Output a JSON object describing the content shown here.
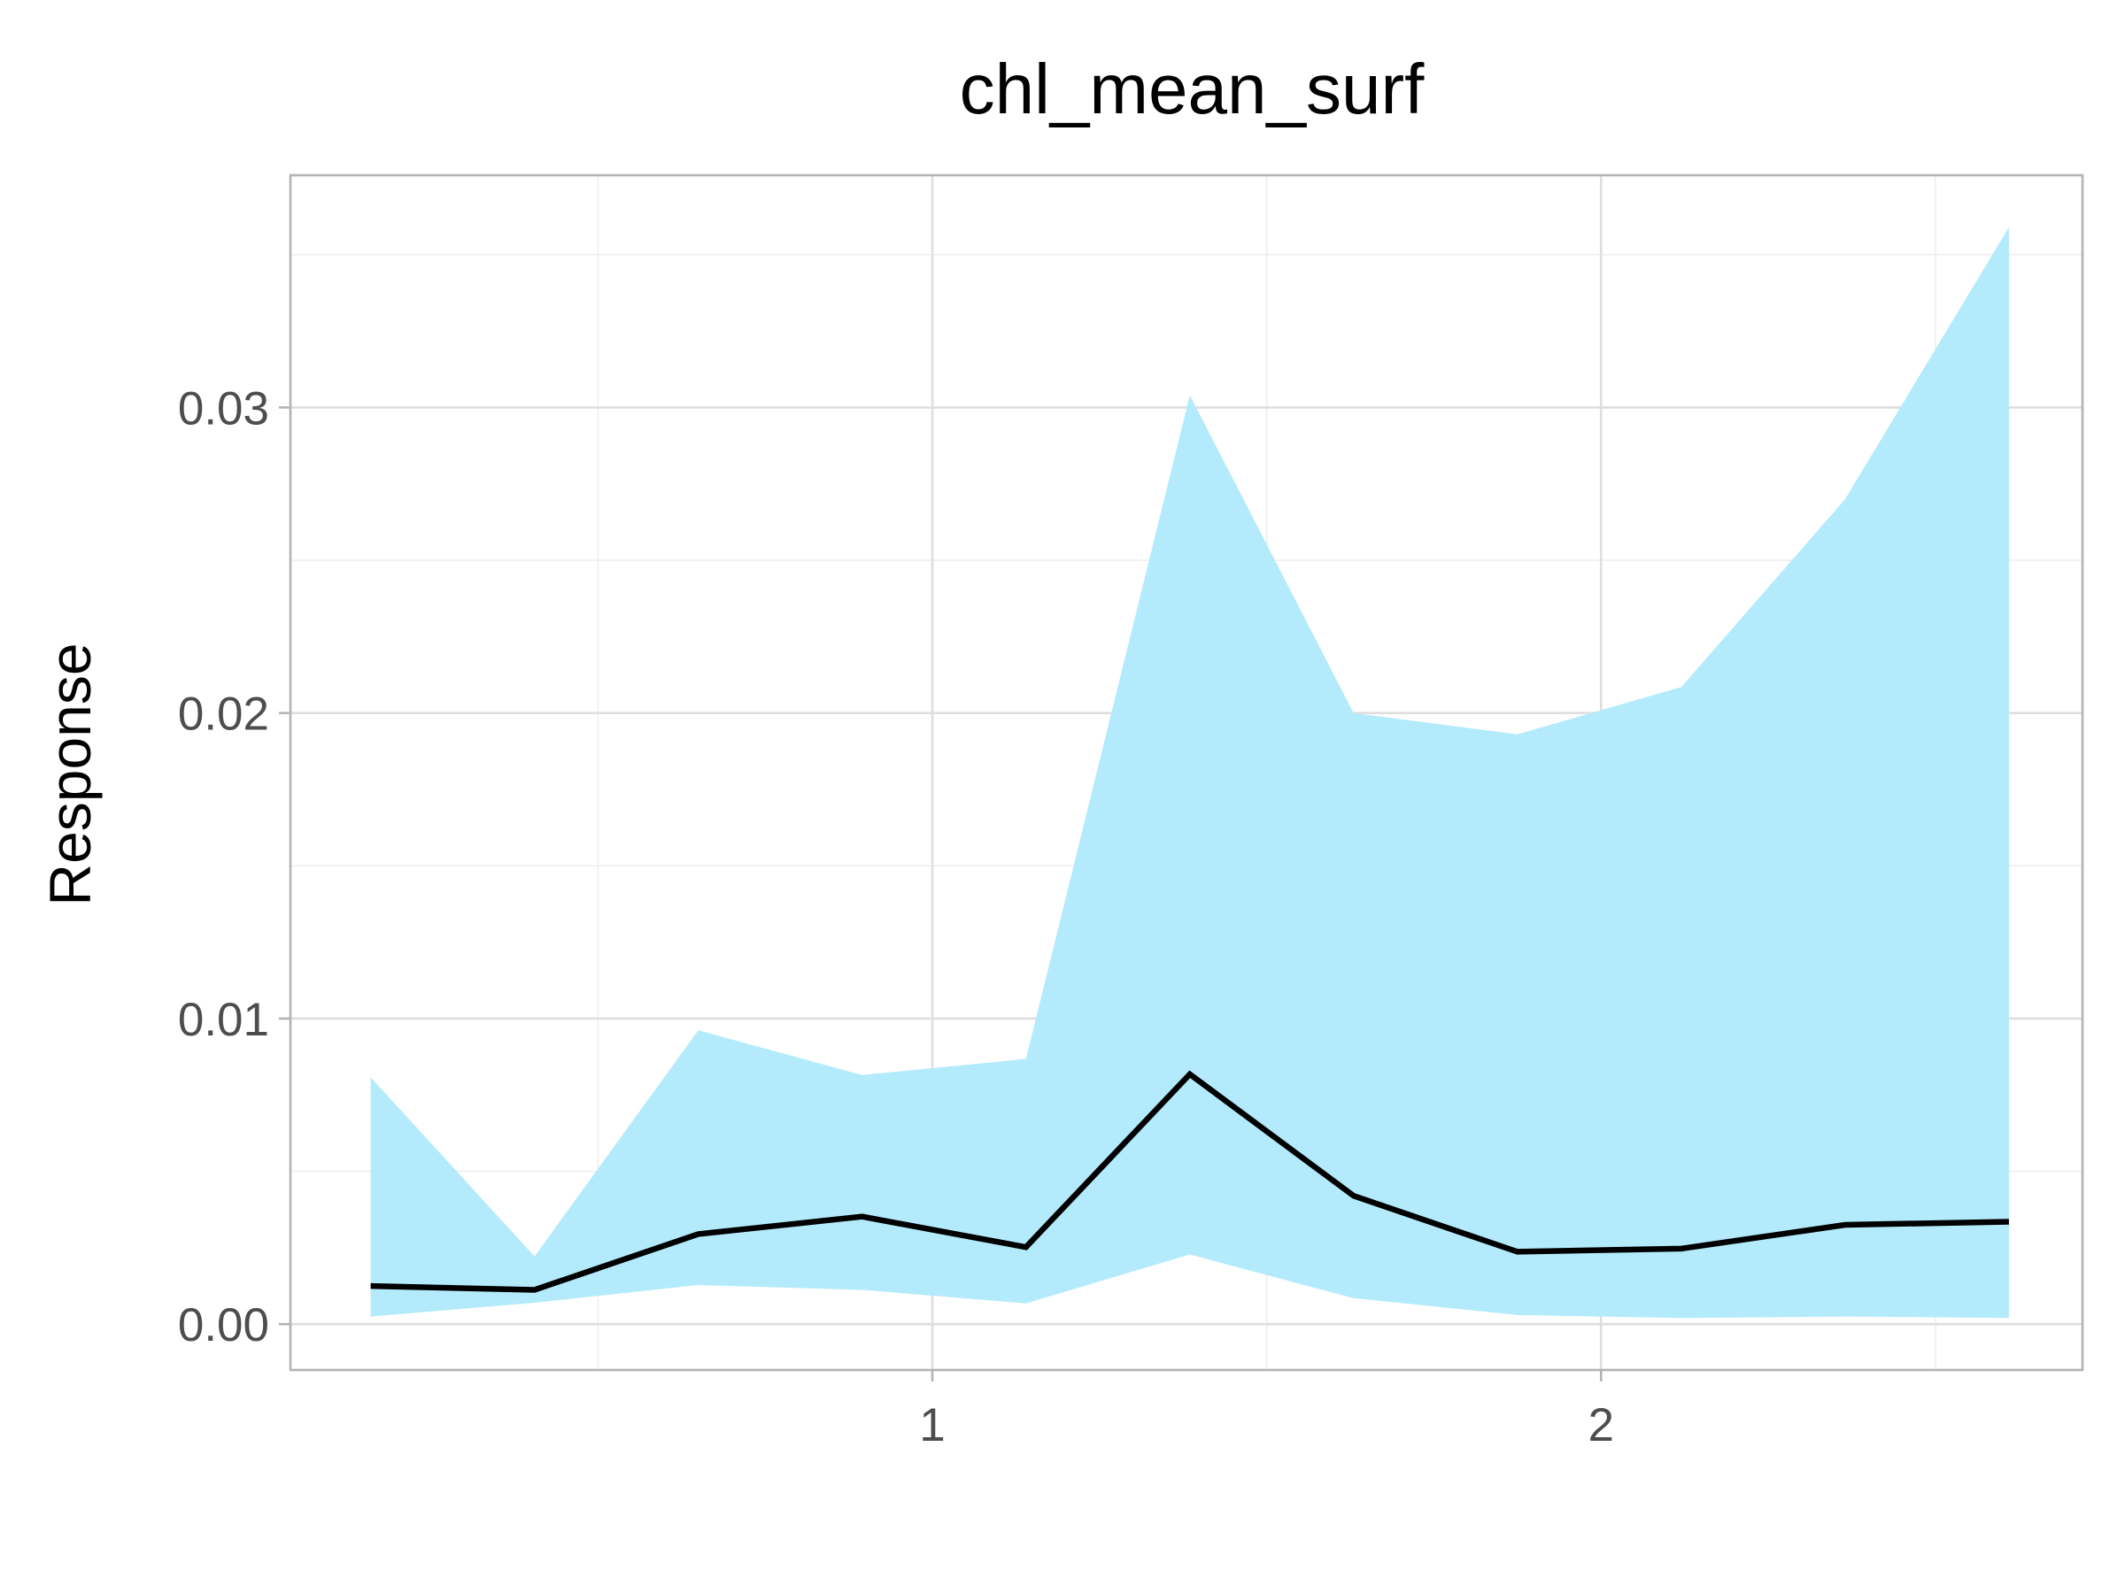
{
  "chart_data": {
    "type": "line",
    "title": "chl_mean_surf",
    "xlabel": "",
    "ylabel": "Response",
    "xlim": [
      0.04,
      2.72
    ],
    "ylim": [
      -0.0015,
      0.0376
    ],
    "x_ticks": [
      1,
      2
    ],
    "x_tick_labels": [
      "1",
      "2"
    ],
    "x_minor_ticks": [
      0.5,
      1.5,
      2.5
    ],
    "y_ticks": [
      0.0,
      0.01,
      0.02,
      0.03
    ],
    "y_tick_labels": [
      "0.00",
      "0.01",
      "0.02",
      "0.03"
    ],
    "y_minor_ticks": [
      0.005,
      0.015,
      0.025,
      0.035
    ],
    "grid": true,
    "legend": "none",
    "colors": {
      "ribbon": "#b3ebfc",
      "line": "#000000"
    },
    "x": [
      0.16,
      0.405,
      0.65,
      0.895,
      1.14,
      1.385,
      1.63,
      1.875,
      2.12,
      2.365,
      2.61
    ],
    "series": [
      {
        "role": "mean",
        "values": [
          0.00125,
          0.00112,
          0.00295,
          0.00352,
          0.00252,
          0.00818,
          0.0042,
          0.00237,
          0.00247,
          0.00325,
          0.00335
        ]
      },
      {
        "role": "lower",
        "values": [
          0.00025,
          0.0007,
          0.00128,
          0.00112,
          0.00068,
          0.00228,
          0.00085,
          0.0003,
          0.0002,
          0.00025,
          0.0002
        ]
      },
      {
        "role": "upper",
        "values": [
          0.00808,
          0.00222,
          0.00962,
          0.00815,
          0.00868,
          0.0304,
          0.02,
          0.0193,
          0.02085,
          0.027,
          0.0359
        ]
      }
    ]
  }
}
